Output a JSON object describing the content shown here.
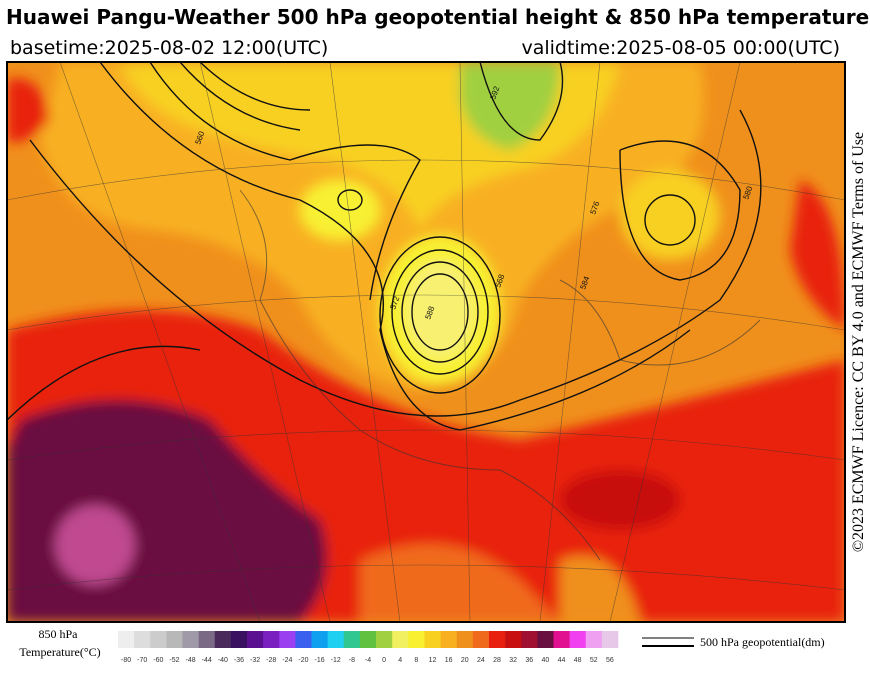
{
  "header": {
    "title": "Huawei Pangu-Weather 500 hPa geopotential height & 850 hPa temperature",
    "basetime": "basetime:2025-08-02 12:00(UTC)",
    "validtime": "validtime:2025-08-05 00:00(UTC)"
  },
  "credit": "©2023 ECMWF Licence: CC BY 4.0 and ECMWF Terms of Use",
  "colorbar": {
    "title": "850 hPa",
    "subtitle": "Temperature(°C)",
    "ticks": [
      -80,
      -70,
      -60,
      -52,
      -48,
      -44,
      -40,
      -36,
      -32,
      -28,
      -24,
      -20,
      -16,
      -12,
      -8,
      -4,
      0,
      4,
      8,
      12,
      16,
      20,
      24,
      28,
      32,
      36,
      40,
      44,
      48,
      52,
      56
    ],
    "colors": [
      "#eeeeee",
      "#dddddd",
      "#cccccc",
      "#b8b8b8",
      "#a09aa8",
      "#7a6a86",
      "#4a2a5a",
      "#3a1060",
      "#5a1090",
      "#7a20c0",
      "#9a40f0",
      "#3a60f0",
      "#10a0f0",
      "#20d0f0",
      "#30c890",
      "#60c040",
      "#a0d040",
      "#f0f060",
      "#f8f030",
      "#f8d020",
      "#f8b020",
      "#f0901c",
      "#f06a1c",
      "#e82010",
      "#c81010",
      "#a01030",
      "#6a1040",
      "#e01090",
      "#f040f0",
      "#f0a0f0",
      "#e8c8e8"
    ]
  },
  "legend": {
    "label": "500 hPa geopotential(dm)"
  },
  "contour_labels": [
    "588",
    "576",
    "584",
    "560",
    "572",
    "592",
    "568",
    "580"
  ]
}
